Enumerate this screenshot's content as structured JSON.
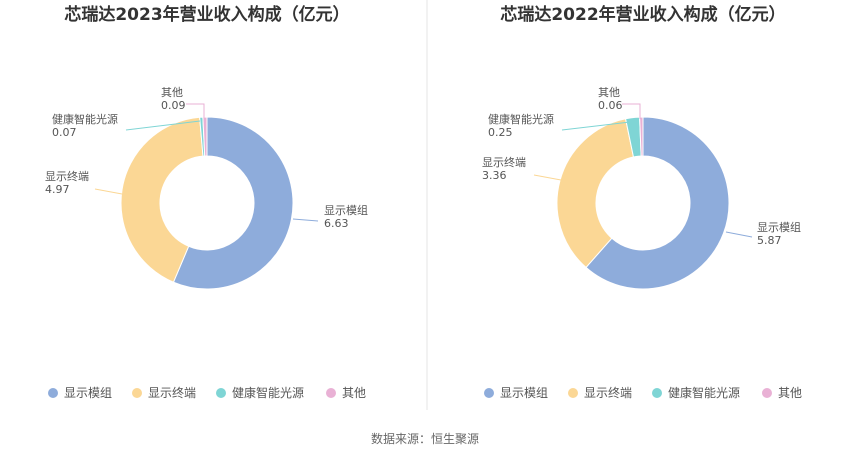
{
  "colors": {
    "display_module": "#8eacdb",
    "display_terminal": "#fbd795",
    "health_light": "#7fd5d5",
    "other": "#e9b1d5",
    "title": "#333333",
    "label": "#555555",
    "divider": "#e6e6e6"
  },
  "legend": [
    "显示模组",
    "显示终端",
    "健康智能光源",
    "其他"
  ],
  "source": "数据来源：恒生聚源",
  "chart_data": [
    {
      "type": "pie",
      "title": "芯瑞达2023年营业收入构成（亿元）",
      "slices": [
        {
          "name": "显示模组",
          "value": 6.63,
          "label": "6.63"
        },
        {
          "name": "显示终端",
          "value": 4.97,
          "label": "4.97"
        },
        {
          "name": "健康智能光源",
          "value": 0.07,
          "label": "0.07"
        },
        {
          "name": "其他",
          "value": 0.09,
          "label": "0.09"
        }
      ],
      "legend_position": "bottom"
    },
    {
      "type": "pie",
      "title": "芯瑞达2022年营业收入构成（亿元）",
      "slices": [
        {
          "name": "显示模组",
          "value": 5.87,
          "label": "5.87"
        },
        {
          "name": "显示终端",
          "value": 3.36,
          "label": "3.36"
        },
        {
          "name": "健康智能光源",
          "value": 0.25,
          "label": "0.25"
        },
        {
          "name": "其他",
          "value": 0.06,
          "label": "0.06"
        }
      ],
      "legend_position": "bottom"
    }
  ]
}
